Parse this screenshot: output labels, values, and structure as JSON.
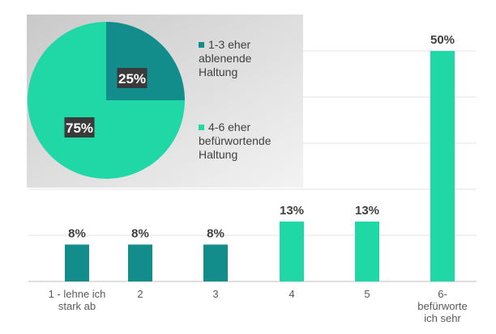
{
  "chart_data": [
    {
      "type": "bar",
      "categories": [
        "1 - lehne ich stark ab",
        "2",
        "3",
        "4",
        "5",
        "6- befürworte ich sehr"
      ],
      "values": [
        8,
        8,
        8,
        13,
        13,
        50
      ],
      "value_labels": [
        "8%",
        "8%",
        "8%",
        "13%",
        "13%",
        "50%"
      ],
      "ylim": [
        0,
        50
      ],
      "grid": true,
      "bar_colors": [
        "#138c8c",
        "#138c8c",
        "#138c8c",
        "#1fd8a6",
        "#1fd8a6",
        "#1fd8a6"
      ]
    },
    {
      "type": "pie",
      "slices": [
        {
          "name": "1-3 eher ablenende Haltung",
          "value": 25,
          "label": "25%",
          "color": "#138c8c"
        },
        {
          "name": "4-6 eher befürwortende Haltung",
          "value": 75,
          "label": "75%",
          "color": "#1fd8a6"
        }
      ],
      "legend_position": "right"
    }
  ]
}
